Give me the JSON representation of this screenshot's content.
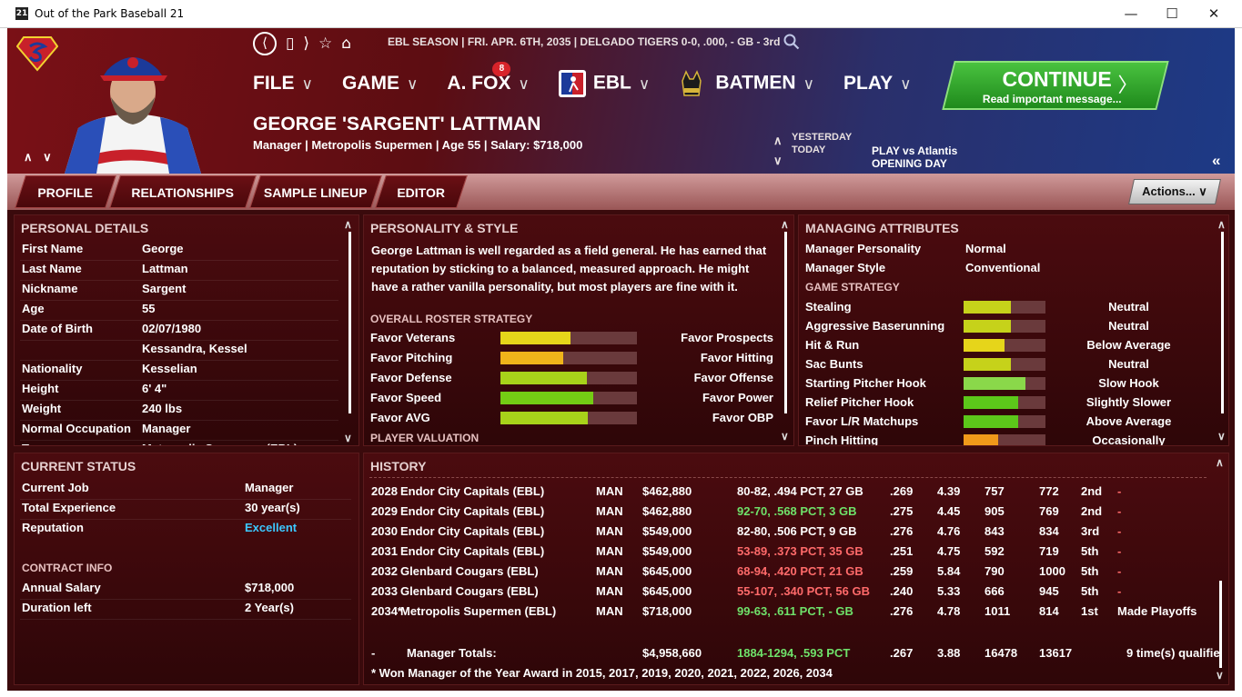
{
  "window": {
    "title": "Out of the Park Baseball 21",
    "icon_label": "21"
  },
  "toolbar": {
    "back": "⟨",
    "page": "▯",
    "forward": "⟩",
    "star": "☆",
    "home": "⌂"
  },
  "status_line": "EBL SEASON  |  FRI. APR. 6TH, 2035  |  DELGADO TIGERS  0-0, .000, - GB - 3rd",
  "menu": {
    "file": "FILE",
    "game": "GAME",
    "afox": "A. FOX",
    "afox_badge": "8",
    "ebl": "EBL",
    "batmen": "BATMEN",
    "play": "PLAY",
    "chev": "∨"
  },
  "continue": {
    "label": "CONTINUE",
    "sub": "Read important message...",
    "arrow": "〉"
  },
  "person": {
    "name": "GEORGE 'SARGENT' LATTMAN",
    "subtitle": "Manager | Metropolis Supermen  |  Age 55  |  Salary: $718,000"
  },
  "schedule": {
    "yesterday": "YESTERDAY",
    "today": "TODAY",
    "today_game": "PLAY vs Atlantis",
    "today_note": "OPENING DAY"
  },
  "nav": {
    "up_down": "∧ ∨",
    "collapse": "«",
    "day_up": "∧",
    "day_down": "∨"
  },
  "tabs": {
    "profile": "PROFILE",
    "relationships": "RELATIONSHIPS",
    "sample_lineup": "SAMPLE LINEUP",
    "editor": "EDITOR"
  },
  "actions_label": "Actions...  ∨",
  "personal": {
    "title": "PERSONAL DETAILS",
    "rows": [
      {
        "label": "First Name",
        "value": "George"
      },
      {
        "label": "Last Name",
        "value": "Lattman"
      },
      {
        "label": "Nickname",
        "value": "Sargent"
      },
      {
        "label": "Age",
        "value": "55"
      },
      {
        "label": "Date of Birth",
        "value": "02/07/1980"
      },
      {
        "label": "",
        "value": "Kessandra, Kessel"
      },
      {
        "label": "Nationality",
        "value": "Kesselian"
      },
      {
        "label": "Height",
        "value": "6' 4\""
      },
      {
        "label": "Weight",
        "value": "240 lbs"
      },
      {
        "label": "Normal Occupation",
        "value": "Manager"
      },
      {
        "label": "Team",
        "value": "Metropolis Supermen (EBL)"
      }
    ]
  },
  "personality": {
    "title": "PERSONALITY & STYLE",
    "text": "George Lattman is well regarded as a field general.  He has earned that reputation by sticking to a balanced, measured approach. He might have a rather vanilla personality, but most players are fine with it.",
    "roster_title": "OVERALL ROSTER STRATEGY",
    "strategy": [
      {
        "left": "Favor Veterans",
        "right": "Favor Prospects",
        "level": 0.51,
        "color": "#e6d51a"
      },
      {
        "left": "Favor Pitching",
        "right": "Favor Hitting",
        "level": 0.46,
        "color": "#f0b41a"
      },
      {
        "left": "Favor Defense",
        "right": "Favor Offense",
        "level": 0.63,
        "color": "#a8d21a"
      },
      {
        "left": "Favor Speed",
        "right": "Favor Power",
        "level": 0.68,
        "color": "#74cc14"
      },
      {
        "left": "Favor AVG",
        "right": "Favor OBP",
        "level": 0.64,
        "color": "#a8d21a"
      }
    ],
    "valuation_title": "PLAYER VALUATION"
  },
  "managing": {
    "title": "MANAGING ATTRIBUTES",
    "personality_label": "Manager Personality",
    "personality_value": "Normal",
    "style_label": "Manager Style",
    "style_value": "Conventional",
    "strategy_title": "GAME STRATEGY",
    "attrs": [
      {
        "label": "Stealing",
        "value": "Neutral",
        "level": 0.58,
        "color": "#c6d21a"
      },
      {
        "label": "Aggressive Baserunning",
        "value": "Neutral",
        "level": 0.58,
        "color": "#c6d21a"
      },
      {
        "label": "Hit & Run",
        "value": "Below Average",
        "level": 0.5,
        "color": "#e6d51a"
      },
      {
        "label": "Sac Bunts",
        "value": "Neutral",
        "level": 0.58,
        "color": "#c6d21a"
      },
      {
        "label": "Starting Pitcher Hook",
        "value": "Slow Hook",
        "level": 0.76,
        "color": "#8ad84a"
      },
      {
        "label": "Relief Pitcher Hook",
        "value": "Slightly Slower",
        "level": 0.67,
        "color": "#5cc81a"
      },
      {
        "label": "Favor L/R Matchups",
        "value": "Above Average",
        "level": 0.67,
        "color": "#5cc81a"
      },
      {
        "label": "Pinch Hitting",
        "value": "Occasionally",
        "level": 0.42,
        "color": "#f09a1a"
      }
    ]
  },
  "current": {
    "title": "CURRENT STATUS",
    "job_label": "Current Job",
    "job_value": "Manager",
    "exp_label": "Total Experience",
    "exp_value": "30 year(s)",
    "rep_label": "Reputation",
    "rep_value": "Excellent",
    "contract_title": "CONTRACT INFO",
    "salary_label": "Annual Salary",
    "salary_value": "$718,000",
    "duration_label": "Duration left",
    "duration_value": "2 Year(s)"
  },
  "history": {
    "title": "HISTORY",
    "rows": [
      {
        "year": "2028",
        "team": "Endor City Capitals (EBL)",
        "role": "MAN",
        "salary": "$462,880",
        "record": "80-82, .494 PCT, 27 GB",
        "rc": "#ffffff",
        "avg": ".269",
        "era": "4.39",
        "rs": "757",
        "ra": "772",
        "pos": "2nd",
        "note": "-"
      },
      {
        "year": "2029",
        "team": "Endor City Capitals (EBL)",
        "role": "MAN",
        "salary": "$462,880",
        "record": "92-70, .568 PCT, 3 GB",
        "rc": "#6fe26a",
        "avg": ".275",
        "era": "4.45",
        "rs": "905",
        "ra": "769",
        "pos": "2nd",
        "note": "-"
      },
      {
        "year": "2030",
        "team": "Endor City Capitals (EBL)",
        "role": "MAN",
        "salary": "$549,000",
        "record": "82-80, .506 PCT, 9 GB",
        "rc": "#ffffff",
        "avg": ".276",
        "era": "4.76",
        "rs": "843",
        "ra": "834",
        "pos": "3rd",
        "note": "-"
      },
      {
        "year": "2031",
        "team": "Endor City Capitals (EBL)",
        "role": "MAN",
        "salary": "$549,000",
        "record": "53-89, .373 PCT, 35 GB",
        "rc": "#ff6a6a",
        "avg": ".251",
        "era": "4.75",
        "rs": "592",
        "ra": "719",
        "pos": "5th",
        "note": "-"
      },
      {
        "year": "2032",
        "team": "Glenbard Cougars (EBL)",
        "role": "MAN",
        "salary": "$645,000",
        "record": "68-94, .420 PCT, 21 GB",
        "rc": "#ff6a6a",
        "avg": ".259",
        "era": "5.84",
        "rs": "790",
        "ra": "1000",
        "pos": "5th",
        "note": "-"
      },
      {
        "year": "2033",
        "team": "Glenbard Cougars (EBL)",
        "role": "MAN",
        "salary": "$645,000",
        "record": "55-107, .340 PCT, 56 GB",
        "rc": "#ff6a6a",
        "avg": ".240",
        "era": "5.33",
        "rs": "666",
        "ra": "945",
        "pos": "5th",
        "note": "-"
      },
      {
        "year": "2034*",
        "team": "Metropolis Supermen (EBL)",
        "role": "MAN",
        "salary": "$718,000",
        "record": "99-63, .611 PCT, - GB",
        "rc": "#6fe26a",
        "avg": ".276",
        "era": "4.78",
        "rs": "1011",
        "ra": "814",
        "pos": "1st",
        "note": "Made Playoffs"
      }
    ],
    "totals": {
      "dash": "-",
      "label": "Manager Totals:",
      "salary": "$4,958,660",
      "record": "1884-1294, .593 PCT",
      "avg": ".267",
      "era": "3.88",
      "rs": "16478",
      "ra": "13617",
      "note": "9 time(s) qualifie"
    },
    "footnote": "* Won Manager of the Year Award in 2015, 2017, 2019, 2020, 2021, 2022, 2026, 2034"
  }
}
